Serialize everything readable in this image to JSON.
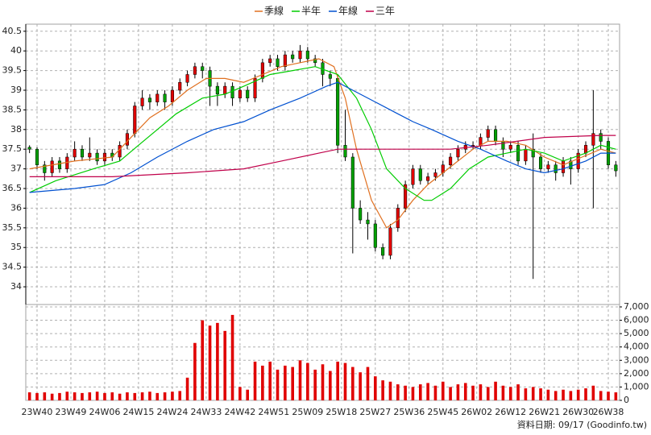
{
  "chart_data": {
    "type": "candlestick",
    "footnote": "資料日期: 09/17 (Goodinfo.tw)",
    "xlim": [
      -3,
      155
    ],
    "xticks": [
      {
        "value": 0,
        "label": "23W40"
      },
      {
        "value": 9,
        "label": "23W49"
      },
      {
        "value": 18,
        "label": "24W06"
      },
      {
        "value": 27,
        "label": "24W15"
      },
      {
        "value": 36,
        "label": "24W24"
      },
      {
        "value": 45,
        "label": "24W33"
      },
      {
        "value": 54,
        "label": "24W42"
      },
      {
        "value": 63,
        "label": "24W51"
      },
      {
        "value": 72,
        "label": "25W09"
      },
      {
        "value": 81,
        "label": "25W18"
      },
      {
        "value": 90,
        "label": "25W27"
      },
      {
        "value": 99,
        "label": "25W36"
      },
      {
        "value": 108,
        "label": "25W45"
      },
      {
        "value": 117,
        "label": "26W02"
      },
      {
        "value": 126,
        "label": "26W12"
      },
      {
        "value": 135,
        "label": "26W21"
      },
      {
        "value": 144,
        "label": "26W30"
      },
      {
        "value": 152,
        "label": "26W38"
      }
    ],
    "ylim": [
      33.55,
      40.68
    ],
    "yticks": [
      34,
      34.5,
      35,
      35.5,
      36,
      36.5,
      37,
      37.5,
      38,
      38.5,
      39,
      39.5,
      40,
      40.5
    ],
    "y2lim": [
      0,
      7180
    ],
    "y2ticks": [
      0,
      {
        "value": 1000,
        "label": "1,000"
      },
      {
        "value": 2000,
        "label": "2,000"
      },
      {
        "value": 3000,
        "label": "3,000"
      },
      {
        "value": 4000,
        "label": "4,000"
      },
      {
        "value": 5000,
        "label": "5,000"
      },
      {
        "value": 6000,
        "label": "6,000"
      },
      {
        "value": 7000,
        "label": "7,000"
      }
    ],
    "grid": true,
    "up_color": "#e00000",
    "down_color": "#00a000",
    "volume_color": "#e00000",
    "x": [
      -2,
      0,
      2,
      4,
      6,
      8,
      10,
      12,
      14,
      16,
      18,
      20,
      22,
      24,
      26,
      28,
      30,
      32,
      34,
      36,
      38,
      40,
      42,
      44,
      46,
      48,
      50,
      52,
      54,
      56,
      58,
      60,
      62,
      64,
      66,
      68,
      70,
      72,
      74,
      76,
      78,
      80,
      82,
      84,
      86,
      88,
      90,
      92,
      94,
      96,
      98,
      100,
      102,
      104,
      106,
      108,
      110,
      112,
      114,
      116,
      118,
      120,
      122,
      124,
      126,
      128,
      130,
      132,
      134,
      136,
      138,
      140,
      142,
      144,
      146,
      148,
      150,
      152,
      154
    ],
    "open": [
      37.55,
      37.5,
      37.1,
      36.9,
      37.2,
      37.0,
      37.3,
      37.5,
      37.3,
      37.4,
      37.2,
      37.4,
      37.3,
      37.6,
      37.9,
      38.6,
      38.8,
      38.7,
      38.9,
      38.7,
      39.0,
      39.2,
      39.4,
      39.6,
      39.5,
      39.1,
      38.9,
      39.1,
      38.8,
      39.0,
      38.8,
      39.3,
      39.7,
      39.8,
      39.6,
      39.9,
      39.8,
      40.0,
      39.8,
      39.7,
      39.4,
      39.3,
      37.6,
      37.3,
      36.0,
      35.7,
      35.6,
      35.0,
      34.8,
      35.5,
      36.0,
      36.6,
      37.0,
      36.7,
      36.8,
      36.9,
      37.1,
      37.3,
      37.5,
      37.6,
      37.6,
      37.8,
      38.0,
      37.7,
      37.5,
      37.6,
      37.2,
      37.5,
      37.3,
      37.0,
      37.1,
      36.9,
      37.2,
      37.0,
      37.4,
      37.6,
      37.9,
      37.7,
      37.1
    ],
    "high": [
      37.6,
      37.55,
      37.2,
      37.3,
      37.3,
      37.4,
      37.7,
      37.6,
      37.8,
      37.5,
      37.5,
      37.5,
      37.7,
      38.0,
      38.7,
      39.0,
      38.9,
      39.0,
      39.0,
      39.1,
      39.3,
      39.5,
      39.7,
      39.7,
      39.6,
      39.2,
      39.2,
      39.2,
      39.1,
      39.1,
      39.4,
      39.8,
      39.9,
      39.9,
      40.0,
      40.0,
      40.15,
      40.1,
      39.9,
      39.8,
      39.5,
      39.4,
      38.5,
      37.4,
      36.2,
      35.9,
      35.7,
      35.1,
      35.6,
      36.1,
      36.7,
      37.1,
      37.1,
      36.9,
      37.0,
      37.2,
      37.4,
      37.6,
      37.7,
      37.7,
      37.9,
      38.1,
      38.1,
      37.8,
      37.7,
      37.7,
      37.6,
      37.9,
      37.4,
      37.2,
      37.2,
      37.3,
      37.3,
      37.5,
      37.7,
      39.0,
      38.0,
      37.8,
      37.2
    ],
    "low": [
      37.4,
      37.0,
      36.7,
      36.8,
      36.9,
      36.9,
      37.2,
      37.2,
      37.2,
      37.1,
      37.1,
      37.2,
      37.2,
      37.5,
      37.8,
      38.5,
      38.5,
      38.6,
      38.5,
      38.6,
      38.9,
      39.1,
      39.3,
      39.3,
      38.6,
      38.6,
      38.8,
      38.6,
      38.7,
      38.7,
      38.7,
      39.2,
      39.6,
      39.5,
      39.5,
      39.7,
      39.7,
      39.7,
      39.6,
      39.1,
      39.1,
      37.4,
      37.2,
      34.85,
      35.6,
      35.2,
      34.9,
      34.7,
      34.7,
      35.4,
      35.9,
      36.5,
      36.6,
      36.6,
      36.7,
      36.8,
      37.0,
      37.2,
      37.4,
      37.5,
      37.5,
      37.7,
      37.6,
      37.3,
      37.4,
      37.1,
      37.1,
      34.2,
      36.9,
      36.9,
      36.7,
      36.8,
      36.6,
      36.9,
      37.3,
      36.0,
      37.5,
      37.0,
      36.8
    ],
    "close": [
      37.5,
      37.1,
      36.9,
      37.2,
      37.0,
      37.3,
      37.5,
      37.3,
      37.4,
      37.2,
      37.4,
      37.3,
      37.6,
      37.9,
      38.6,
      38.8,
      38.7,
      38.9,
      38.7,
      39.0,
      39.2,
      39.4,
      39.6,
      39.5,
      39.1,
      38.9,
      39.1,
      38.8,
      39.0,
      38.8,
      39.3,
      39.7,
      39.8,
      39.6,
      39.9,
      39.8,
      40.0,
      39.8,
      39.7,
      39.4,
      39.3,
      37.6,
      37.3,
      36.0,
      35.7,
      35.6,
      35.0,
      34.8,
      35.5,
      36.0,
      36.6,
      37.0,
      36.7,
      36.8,
      36.9,
      37.1,
      37.3,
      37.5,
      37.6,
      37.6,
      37.8,
      38.0,
      37.7,
      37.5,
      37.6,
      37.2,
      37.5,
      37.3,
      37.0,
      37.1,
      36.9,
      37.2,
      37.0,
      37.4,
      37.6,
      37.9,
      37.7,
      37.1,
      36.95
    ],
    "volume": [
      600,
      550,
      600,
      500,
      550,
      650,
      600,
      550,
      600,
      650,
      550,
      600,
      500,
      600,
      550,
      600,
      650,
      550,
      600,
      650,
      700,
      1700,
      4300,
      6000,
      5600,
      5800,
      5200,
      6400,
      1000,
      800,
      2900,
      2600,
      2900,
      2300,
      2600,
      2500,
      3000,
      2800,
      2300,
      2700,
      2200,
      2900,
      2800,
      2500,
      2100,
      2500,
      1800,
      1500,
      1400,
      1200,
      1100,
      1000,
      1200,
      1300,
      1100,
      1400,
      1000,
      1200,
      1300,
      1100,
      1200,
      1000,
      1400,
      1100,
      1000,
      1200,
      900,
      1000,
      900,
      800,
      700,
      800,
      700,
      800,
      900,
      1100,
      700,
      650,
      600
    ],
    "series": [
      {
        "name": "季線",
        "color": "#e07020",
        "x": [
          -2,
          10,
          20,
          25,
          30,
          35,
          40,
          45,
          50,
          55,
          60,
          65,
          70,
          75,
          79,
          82,
          85,
          89,
          93,
          96,
          100,
          104,
          108,
          112,
          116,
          120,
          125,
          130,
          135,
          140,
          145,
          150,
          154
        ],
        "values": [
          37.0,
          37.2,
          37.3,
          37.8,
          38.3,
          38.6,
          39.0,
          39.3,
          39.3,
          39.2,
          39.4,
          39.6,
          39.7,
          39.8,
          39.6,
          38.8,
          37.5,
          36.2,
          35.5,
          35.7,
          36.2,
          36.6,
          36.9,
          37.2,
          37.5,
          37.7,
          37.7,
          37.6,
          37.3,
          37.1,
          37.3,
          37.5,
          37.4
        ]
      },
      {
        "name": "半年",
        "color": "#00cc00",
        "x": [
          -2,
          5,
          15,
          22,
          27,
          32,
          37,
          44,
          50,
          55,
          62,
          68,
          74,
          80,
          85,
          89,
          93,
          98,
          103,
          105,
          110,
          115,
          120,
          125,
          130,
          135,
          140,
          146,
          150,
          154
        ],
        "values": [
          36.4,
          36.7,
          37.0,
          37.2,
          37.6,
          38.0,
          38.4,
          38.8,
          38.9,
          39.1,
          39.4,
          39.5,
          39.6,
          39.4,
          38.8,
          38.0,
          37.0,
          36.5,
          36.2,
          36.2,
          36.5,
          37.0,
          37.3,
          37.4,
          37.5,
          37.4,
          37.2,
          37.4,
          37.6,
          37.5
        ]
      },
      {
        "name": "年線",
        "color": "#0050d0",
        "x": [
          -2,
          10,
          18,
          25,
          32,
          40,
          47,
          55,
          62,
          70,
          77,
          80,
          84,
          90,
          96,
          100,
          105,
          112,
          118,
          125,
          130,
          135,
          140,
          146,
          150,
          154
        ],
        "values": [
          36.4,
          36.5,
          36.6,
          36.9,
          37.3,
          37.7,
          38.0,
          38.2,
          38.5,
          38.8,
          39.1,
          39.2,
          39.0,
          38.7,
          38.4,
          38.2,
          38.0,
          37.7,
          37.5,
          37.2,
          37.0,
          36.9,
          37.0,
          37.2,
          37.4,
          37.4
        ]
      },
      {
        "name": "三年",
        "color": "#c0004a",
        "x": [
          -2,
          20,
          40,
          55,
          65,
          75,
          80,
          90,
          110,
          120,
          135,
          150,
          154
        ],
        "values": [
          36.8,
          36.8,
          36.9,
          37.0,
          37.2,
          37.4,
          37.5,
          37.5,
          37.5,
          37.6,
          37.8,
          37.85,
          37.85
        ]
      }
    ]
  }
}
